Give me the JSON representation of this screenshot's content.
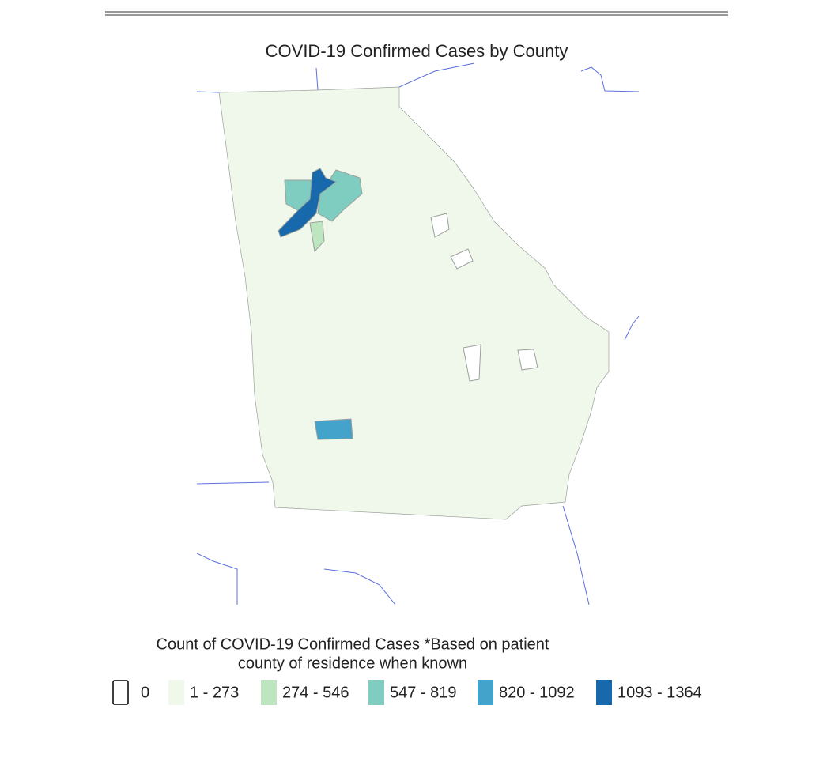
{
  "title": "COVID-19 Confirmed Cases by County",
  "legend": {
    "title_lines": [
      "Count of COVID-19 Confirmed Cases *Based on patient",
      "county of residence when known"
    ],
    "items": [
      {
        "label": "0",
        "color": "#ffffff"
      },
      {
        "label": "1 - 273",
        "color": "#f0f8ec"
      },
      {
        "label": "274 - 546",
        "color": "#bde5bf"
      },
      {
        "label": "547 - 819",
        "color": "#7fcdc1"
      },
      {
        "label": "820 - 1092",
        "color": "#43a3cb"
      },
      {
        "label": "1093 - 1364",
        "color": "#1769ab"
      }
    ]
  }
}
